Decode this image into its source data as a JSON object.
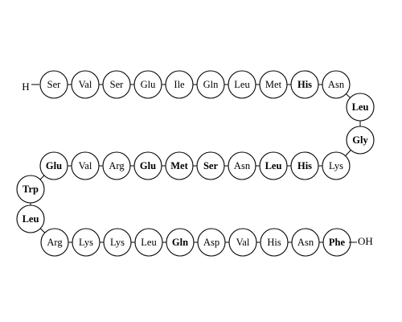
{
  "diagram": {
    "n_terminus": "H",
    "c_terminus": "OH",
    "residues": [
      {
        "label": "Ser",
        "bold": false
      },
      {
        "label": "Val",
        "bold": false
      },
      {
        "label": "Ser",
        "bold": false
      },
      {
        "label": "Glu",
        "bold": false
      },
      {
        "label": "Ile",
        "bold": false
      },
      {
        "label": "Gln",
        "bold": false
      },
      {
        "label": "Leu",
        "bold": false
      },
      {
        "label": "Met",
        "bold": false
      },
      {
        "label": "His",
        "bold": true
      },
      {
        "label": "Asn",
        "bold": false
      },
      {
        "label": "Leu",
        "bold": true
      },
      {
        "label": "Gly",
        "bold": true
      },
      {
        "label": "Lys",
        "bold": false
      },
      {
        "label": "His",
        "bold": true
      },
      {
        "label": "Leu",
        "bold": true
      },
      {
        "label": "Asn",
        "bold": false
      },
      {
        "label": "Ser",
        "bold": true
      },
      {
        "label": "Met",
        "bold": true
      },
      {
        "label": "Glu",
        "bold": true
      },
      {
        "label": "Arg",
        "bold": false
      },
      {
        "label": "Val",
        "bold": false
      },
      {
        "label": "Glu",
        "bold": true
      },
      {
        "label": "Trp",
        "bold": true
      },
      {
        "label": "Leu",
        "bold": true
      },
      {
        "label": "Arg",
        "bold": false
      },
      {
        "label": "Lys",
        "bold": false
      },
      {
        "label": "Lys",
        "bold": false
      },
      {
        "label": "Leu",
        "bold": false
      },
      {
        "label": "Gln",
        "bold": true
      },
      {
        "label": "Asp",
        "bold": false
      },
      {
        "label": "Val",
        "bold": false
      },
      {
        "label": "His",
        "bold": false
      },
      {
        "label": "Asn",
        "bold": false
      },
      {
        "label": "Phe",
        "bold": true
      }
    ]
  }
}
